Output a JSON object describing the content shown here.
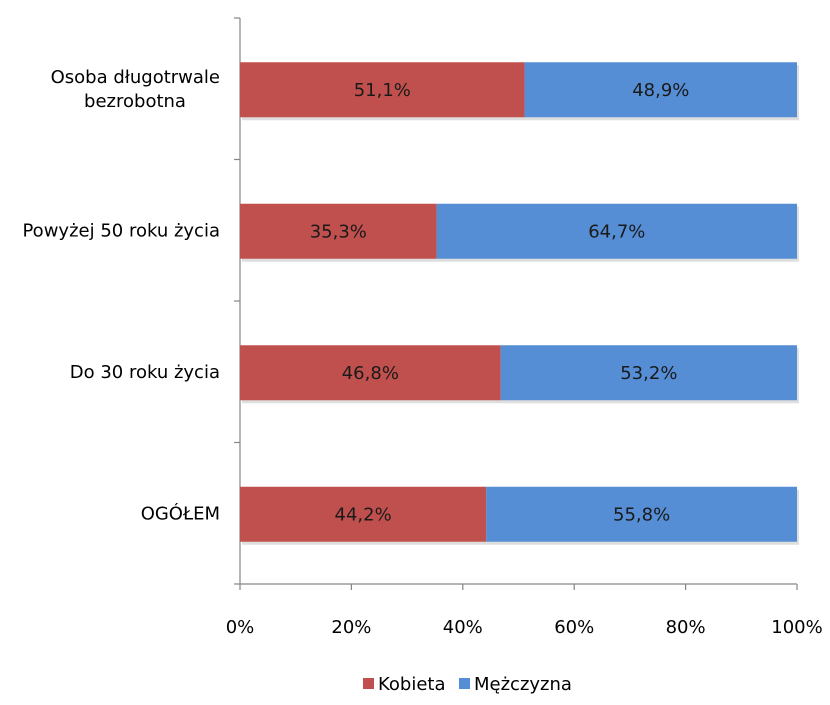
{
  "chart_data": {
    "type": "bar",
    "orientation": "horizontal",
    "stacked": true,
    "percent_stacked": true,
    "categories": [
      [
        "Osoba długotrwale",
        "bezrobotna"
      ],
      [
        "Powyżej 50 roku życia"
      ],
      [
        "Do 30 roku życia"
      ],
      [
        "OGÓŁEM"
      ]
    ],
    "series": [
      {
        "name": "Kobieta",
        "color": "#C0504D",
        "values": [
          51.1,
          35.3,
          46.8,
          44.2
        ],
        "labels": [
          "51,1%",
          "35,3%",
          "46,8%",
          "44,2%"
        ]
      },
      {
        "name": "Mężczyzna",
        "color": "#558ED5",
        "values": [
          48.9,
          64.7,
          53.2,
          55.8
        ],
        "labels": [
          "48,9%",
          "64,7%",
          "53,2%",
          "55,8%"
        ]
      }
    ],
    "xlim": [
      0,
      100
    ],
    "x_ticks": [
      "0%",
      "20%",
      "40%",
      "60%",
      "80%",
      "100%"
    ],
    "legend_position": "bottom",
    "grid": false
  }
}
